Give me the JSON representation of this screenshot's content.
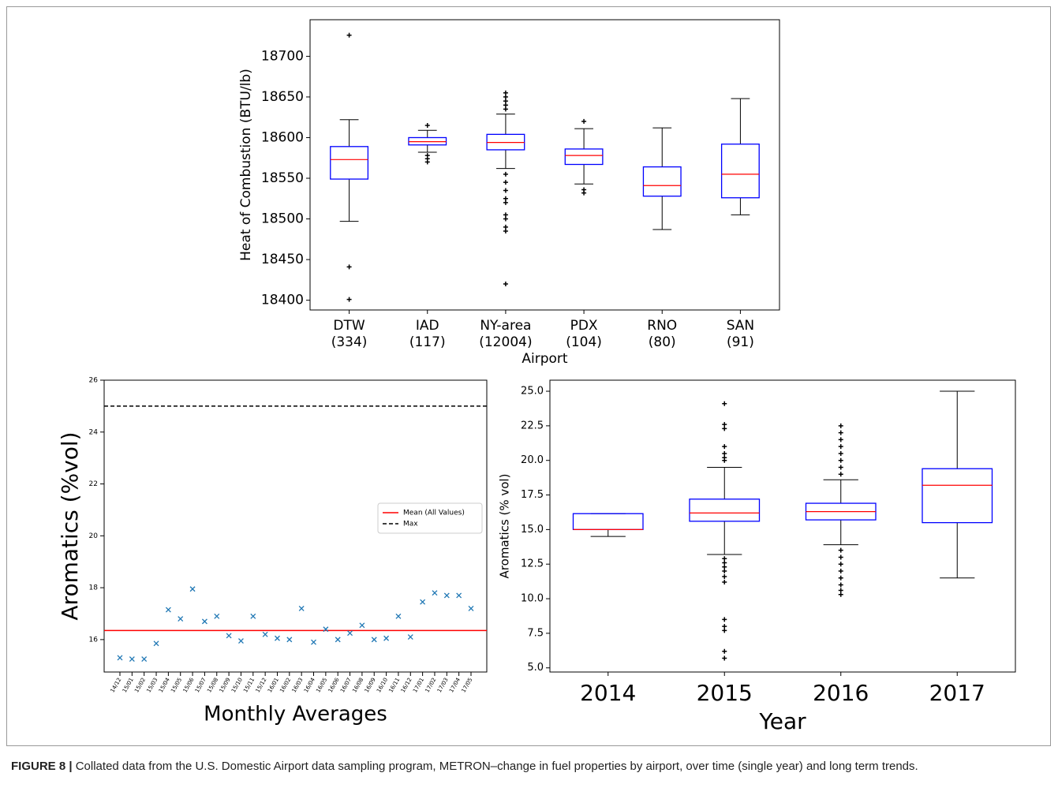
{
  "chart_data": [
    {
      "type": "box",
      "y_label": "Heat of Combustion (BTU/lb)",
      "x_label": "Airport",
      "categories": [
        "DTW",
        "IAD",
        "NY-area",
        "PDX",
        "RNO",
        "SAN"
      ],
      "category_notes": [
        "(334)",
        "(117)",
        "(12004)",
        "(104)",
        "(80)",
        "(91)"
      ],
      "box_color": "#0000ff",
      "median_color": "#ff0000",
      "whisker_color": "#000000",
      "ylim": [
        18388,
        18745
      ],
      "yticks": [
        18400,
        18450,
        18500,
        18550,
        18600,
        18650,
        18700
      ],
      "boxes": [
        {
          "whislo": 18497,
          "q1": 18549,
          "med": 18573,
          "q3": 18589,
          "whishi": 18622,
          "fliers": [
            18726,
            18441,
            18401
          ]
        },
        {
          "whislo": 18582,
          "q1": 18591,
          "med": 18595,
          "q3": 18600,
          "whishi": 18609,
          "fliers": [
            18615,
            18578,
            18574,
            18570
          ]
        },
        {
          "whislo": 18562,
          "q1": 18585,
          "med": 18594,
          "q3": 18604,
          "whishi": 18629,
          "fliers": [
            18635,
            18640,
            18645,
            18650,
            18655,
            18555,
            18545,
            18535,
            18525,
            18520,
            18505,
            18500,
            18490,
            18485,
            18420
          ]
        },
        {
          "whislo": 18543,
          "q1": 18567,
          "med": 18578,
          "q3": 18586,
          "whishi": 18611,
          "fliers": [
            18620,
            18536,
            18532
          ]
        },
        {
          "whislo": 18487,
          "q1": 18528,
          "med": 18541,
          "q3": 18564,
          "whishi": 18612,
          "fliers": []
        },
        {
          "whislo": 18505,
          "q1": 18526,
          "med": 18555,
          "q3": 18592,
          "whishi": 18648,
          "fliers": []
        }
      ]
    },
    {
      "type": "scatter",
      "y_label": "Aromatics (%vol)",
      "x_label": "Monthly Averages",
      "categories": [
        "14/12",
        "15/01",
        "15/02",
        "15/03",
        "15/04",
        "15/05",
        "15/06",
        "15/07",
        "15/08",
        "15/09",
        "15/10",
        "15/11",
        "15/12",
        "16/01",
        "16/02",
        "16/03",
        "16/04",
        "16/05",
        "16/06",
        "16/07",
        "16/08",
        "16/09",
        "16/10",
        "16/11",
        "16/12",
        "17/01",
        "17/02",
        "17/03",
        "17/04",
        "17/05"
      ],
      "values": [
        15.3,
        15.25,
        15.25,
        15.85,
        17.15,
        16.8,
        17.95,
        16.7,
        16.9,
        16.15,
        15.95,
        16.9,
        16.2,
        16.05,
        16.0,
        17.2,
        15.9,
        16.4,
        16.0,
        16.25,
        16.55,
        16.0,
        16.05,
        16.9,
        16.1,
        17.45,
        17.8,
        17.7,
        17.7,
        17.2
      ],
      "color": "#1f77b4",
      "ylim": [
        14.75,
        26
      ],
      "yticks": [
        16,
        18,
        20,
        22,
        24,
        26
      ],
      "hlines": [
        {
          "name": "Mean (All Values)",
          "value": 16.35,
          "color": "#ff0000",
          "style": "solid"
        },
        {
          "name": "Max",
          "value": 25,
          "color": "#000000",
          "style": "dashed"
        }
      ],
      "legend": "right"
    },
    {
      "type": "box",
      "y_label": "Aromatics (% vol)",
      "x_label": "Year",
      "categories": [
        "2014",
        "2015",
        "2016",
        "2017"
      ],
      "box_color": "#0000ff",
      "median_color": "#ff0000",
      "whisker_color": "#000000",
      "ylim": [
        4.7,
        25.8
      ],
      "yticks": [
        {
          "value": 5,
          "label": "5.0"
        },
        7.5,
        {
          "value": 10,
          "label": "10.0"
        },
        12.5,
        {
          "value": 15,
          "label": "15.0"
        },
        17.5,
        {
          "value": 20,
          "label": "20.0"
        },
        22.5,
        {
          "value": 25,
          "label": "25.0"
        }
      ],
      "boxes": [
        {
          "whislo": 14.5,
          "q1": 15.0,
          "med": 15.0,
          "q3": 16.15,
          "whishi": 16.15,
          "fliers": []
        },
        {
          "whislo": 13.2,
          "q1": 15.6,
          "med": 16.2,
          "q3": 17.2,
          "whishi": 19.5,
          "fliers": [
            20,
            20.2,
            20.5,
            21,
            22.3,
            22.6,
            24.1,
            12.9,
            12.6,
            12.3,
            12.0,
            11.6,
            11.2,
            8.5,
            8.0,
            7.7,
            6.2,
            5.7
          ]
        },
        {
          "whislo": 13.9,
          "q1": 15.7,
          "med": 16.3,
          "q3": 16.9,
          "whishi": 18.6,
          "fliers": [
            19,
            19.5,
            20,
            20.5,
            21,
            21.5,
            22,
            22.5,
            13.5,
            13.0,
            12.5,
            12.0,
            11.5,
            11.0,
            10.6,
            10.3
          ]
        },
        {
          "whislo": 11.5,
          "q1": 15.5,
          "med": 18.2,
          "q3": 19.4,
          "whishi": 25.0,
          "fliers": []
        }
      ]
    }
  ],
  "caption": {
    "label": "FIGURE 8 |",
    "text": "Collated data from the U.S. Domestic Airport data sampling program, METRON–change in fuel properties by airport, over time (single year) and long term trends."
  }
}
